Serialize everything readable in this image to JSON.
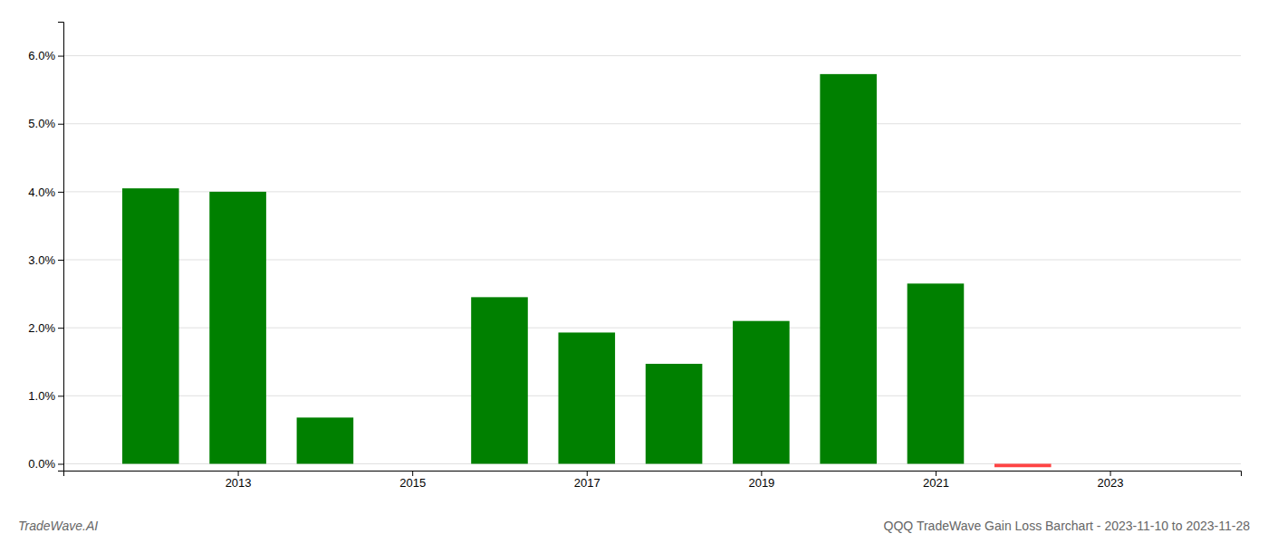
{
  "chart_data": {
    "type": "bar",
    "title": "QQQ TradeWave Gain Loss Barchart - 2023-11-10 to 2023-11-28",
    "annotations": [
      "TradeWave.AI"
    ],
    "x": [
      2012,
      2013,
      2014,
      2016,
      2017,
      2018,
      2019,
      2020,
      2021,
      2022
    ],
    "values": [
      0.0405,
      0.04,
      0.0068,
      0.0245,
      0.0193,
      0.0147,
      0.021,
      0.0573,
      0.0265,
      -0.0005
    ],
    "colors": [
      "#008000",
      "#008000",
      "#008000",
      "#008000",
      "#008000",
      "#008000",
      "#008000",
      "#008000",
      "#008000",
      "#FF4444"
    ],
    "xlim": [
      2011.0,
      2024.5
    ],
    "xticks": [
      2013,
      2015,
      2017,
      2019,
      2021,
      2023
    ],
    "ylim": [
      -0.001,
      0.065
    ],
    "yticks": [
      {
        "value": 0.0,
        "label": "0.0%"
      },
      {
        "value": 0.01,
        "label": "1.0%"
      },
      {
        "value": 0.02,
        "label": "2.0%"
      },
      {
        "value": 0.03,
        "label": "3.0%"
      },
      {
        "value": 0.04,
        "label": "4.0%"
      },
      {
        "value": 0.05,
        "label": "5.0%"
      },
      {
        "value": 0.06,
        "label": "6.0%"
      }
    ],
    "grid": true
  }
}
